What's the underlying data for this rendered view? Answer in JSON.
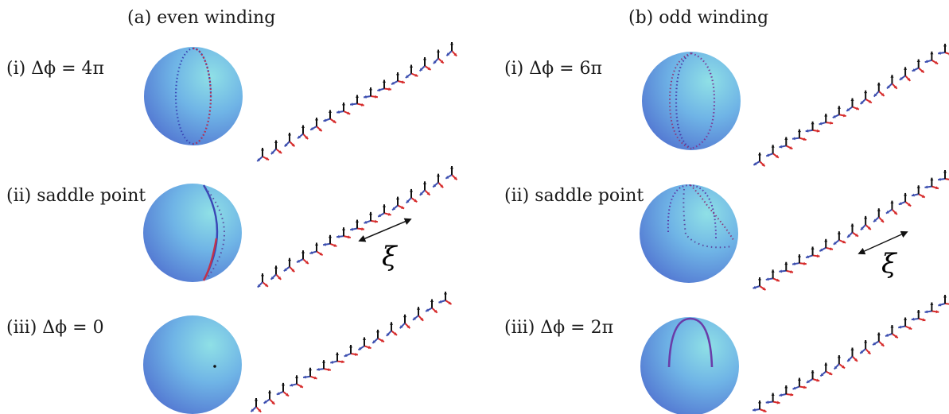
{
  "columns": {
    "even": {
      "title": "(a) even winding"
    },
    "odd": {
      "title": "(b) odd winding"
    }
  },
  "rows": {
    "even": [
      {
        "label": "(i) Δϕ = 4π"
      },
      {
        "label": "(ii) saddle point"
      },
      {
        "label": "(iii) Δϕ = 0"
      }
    ],
    "odd": [
      {
        "label": "(i) Δϕ = 6π"
      },
      {
        "label": "(ii) saddle point"
      },
      {
        "label": "(iii) Δϕ = 2π"
      }
    ]
  },
  "annotations": {
    "xi": "ξ"
  },
  "colors": {
    "sphere_light": "#8fe0e6",
    "sphere_mid": "#6fb4e6",
    "sphere_dark": "#4f6fcf",
    "arrow_red": "#d62a2a",
    "arrow_blue": "#3c4fb0",
    "arrow_black": "#111111",
    "path_blue": "#3a46b5",
    "path_red": "#c2324a"
  }
}
